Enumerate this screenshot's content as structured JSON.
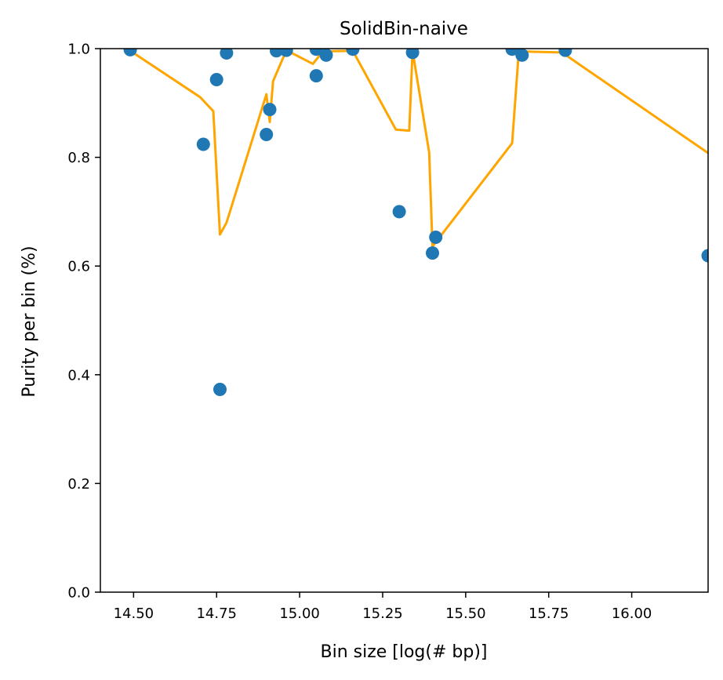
{
  "chart_data": {
    "type": "scatter",
    "title": "SolidBin-naive",
    "xlabel": "Bin size [log(# bp)]",
    "ylabel": "Purity per bin (%)",
    "xlim": [
      14.4,
      16.23
    ],
    "ylim": [
      0.0,
      1.0
    ],
    "grid": false,
    "xticks": [
      14.5,
      14.75,
      15.0,
      15.25,
      15.5,
      15.75,
      16.0
    ],
    "xtick_labels": [
      "14.50",
      "14.75",
      "15.00",
      "15.25",
      "15.50",
      "15.75",
      "16.00"
    ],
    "yticks": [
      0.0,
      0.2,
      0.4,
      0.6,
      0.8,
      1.0
    ],
    "ytick_labels": [
      "0.0",
      "0.2",
      "0.4",
      "0.6",
      "0.8",
      "1.0"
    ],
    "series": [
      {
        "kind": "scatter",
        "color": "#1f77b4",
        "points": [
          {
            "x": 14.49,
            "y": 0.998
          },
          {
            "x": 14.71,
            "y": 0.824
          },
          {
            "x": 14.75,
            "y": 0.943
          },
          {
            "x": 14.76,
            "y": 0.373
          },
          {
            "x": 14.78,
            "y": 0.992
          },
          {
            "x": 14.9,
            "y": 0.842
          },
          {
            "x": 14.91,
            "y": 0.888
          },
          {
            "x": 14.93,
            "y": 0.996
          },
          {
            "x": 14.96,
            "y": 0.997
          },
          {
            "x": 15.05,
            "y": 0.95
          },
          {
            "x": 15.05,
            "y": 0.999
          },
          {
            "x": 15.08,
            "y": 0.988
          },
          {
            "x": 15.16,
            "y": 0.999
          },
          {
            "x": 15.3,
            "y": 0.7
          },
          {
            "x": 15.34,
            "y": 0.993
          },
          {
            "x": 15.4,
            "y": 0.624
          },
          {
            "x": 15.41,
            "y": 0.653
          },
          {
            "x": 15.64,
            "y": 0.999
          },
          {
            "x": 15.67,
            "y": 0.988
          },
          {
            "x": 15.8,
            "y": 0.997
          },
          {
            "x": 16.23,
            "y": 0.619
          }
        ]
      },
      {
        "kind": "line",
        "color": "#ffa500",
        "points": [
          {
            "x": 14.49,
            "y": 0.996
          },
          {
            "x": 14.7,
            "y": 0.911
          },
          {
            "x": 14.74,
            "y": 0.885
          },
          {
            "x": 14.76,
            "y": 0.658
          },
          {
            "x": 14.78,
            "y": 0.68
          },
          {
            "x": 14.9,
            "y": 0.916
          },
          {
            "x": 14.91,
            "y": 0.865
          },
          {
            "x": 14.92,
            "y": 0.94
          },
          {
            "x": 14.96,
            "y": 0.997
          },
          {
            "x": 15.04,
            "y": 0.972
          },
          {
            "x": 15.07,
            "y": 0.995
          },
          {
            "x": 15.16,
            "y": 0.996
          },
          {
            "x": 15.29,
            "y": 0.851
          },
          {
            "x": 15.33,
            "y": 0.849
          },
          {
            "x": 15.34,
            "y": 0.996
          },
          {
            "x": 15.39,
            "y": 0.809
          },
          {
            "x": 15.4,
            "y": 0.636
          },
          {
            "x": 15.64,
            "y": 0.826
          },
          {
            "x": 15.66,
            "y": 0.995
          },
          {
            "x": 15.79,
            "y": 0.993
          },
          {
            "x": 16.23,
            "y": 0.808
          }
        ]
      }
    ]
  }
}
